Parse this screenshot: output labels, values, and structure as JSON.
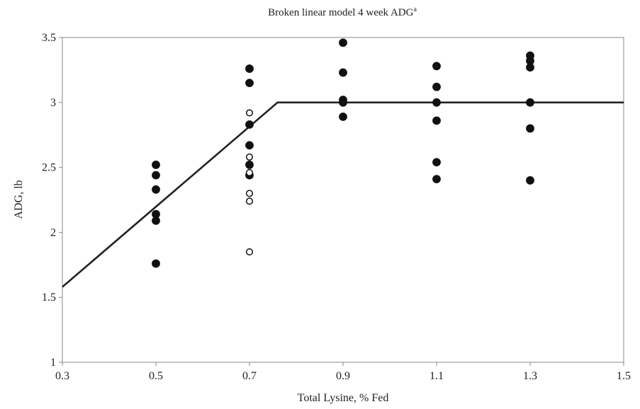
{
  "chart_data": {
    "type": "scatter",
    "title": "Broken linear model 4 week ADG",
    "title_superscript": "a",
    "xlabel": "Total Lysine, % Fed",
    "ylabel": "ADG, lb",
    "xlim": [
      0.3,
      1.5
    ],
    "ylim": [
      1,
      3.5
    ],
    "x_ticks": [
      "0.3",
      "0.5",
      "0.7",
      "0.9",
      "1.1",
      "1.3",
      "1.5"
    ],
    "y_ticks": [
      "1",
      "1.5",
      "2",
      "2.5",
      "3",
      "3.5"
    ],
    "grid": false,
    "series": [
      {
        "marker": "filled-circle",
        "color": "#111111",
        "points": [
          [
            0.5,
            2.52
          ],
          [
            0.5,
            2.44
          ],
          [
            0.5,
            2.33
          ],
          [
            0.5,
            2.14
          ],
          [
            0.5,
            2.09
          ],
          [
            0.5,
            1.76
          ],
          [
            0.7,
            3.26
          ],
          [
            0.7,
            3.15
          ],
          [
            0.7,
            2.83
          ],
          [
            0.7,
            2.67
          ],
          [
            0.7,
            2.52
          ],
          [
            0.7,
            2.44
          ],
          [
            0.9,
            3.46
          ],
          [
            0.9,
            3.23
          ],
          [
            0.9,
            3.02
          ],
          [
            0.9,
            3.0
          ],
          [
            0.9,
            2.89
          ],
          [
            1.1,
            3.28
          ],
          [
            1.1,
            3.12
          ],
          [
            1.1,
            3.0
          ],
          [
            1.1,
            2.86
          ],
          [
            1.1,
            2.54
          ],
          [
            1.1,
            2.41
          ],
          [
            1.3,
            3.36
          ],
          [
            1.3,
            3.32
          ],
          [
            1.3,
            3.27
          ],
          [
            1.3,
            3.0
          ],
          [
            1.3,
            2.8
          ],
          [
            1.3,
            2.4
          ]
        ]
      },
      {
        "marker": "open-circle",
        "color": "#111111",
        "points": [
          [
            0.7,
            2.92
          ],
          [
            0.7,
            2.58
          ],
          [
            0.7,
            2.46
          ],
          [
            0.7,
            2.3
          ],
          [
            0.7,
            2.24
          ],
          [
            0.7,
            1.85
          ]
        ]
      },
      {
        "type": "line",
        "color": "#222222",
        "points": [
          [
            0.3,
            1.58
          ],
          [
            0.76,
            3.0
          ],
          [
            1.5,
            3.0
          ]
        ]
      }
    ]
  }
}
